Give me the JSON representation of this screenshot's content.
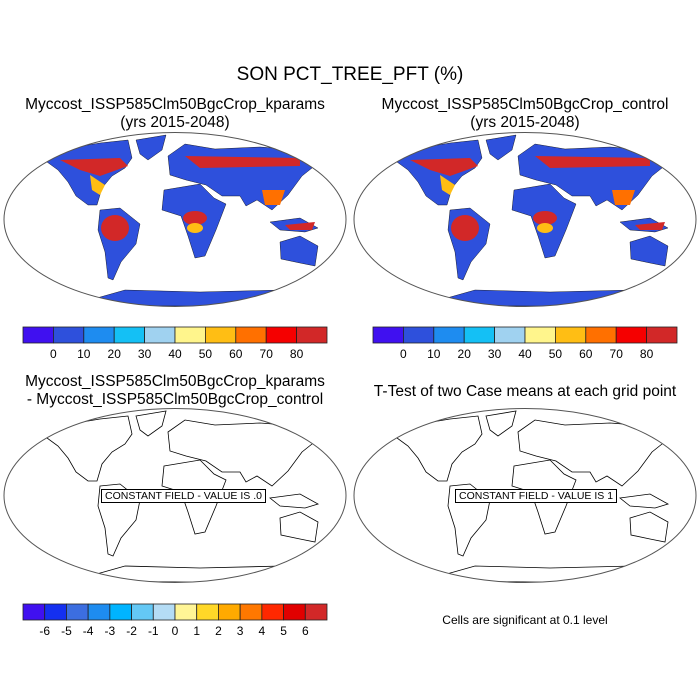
{
  "title": "SON PCT_TREE_PFT (%)",
  "panels": [
    {
      "title_line1": "Myccost_ISSP585Clm50BgcCrop_kparams",
      "title_line2": "(yrs 2015-2048)"
    },
    {
      "title_line1": "Myccost_ISSP585Clm50BgcCrop_control",
      "title_line2": "(yrs 2015-2048)"
    },
    {
      "title_line1": "Myccost_ISSP585Clm50BgcCrop_kparams",
      "title_line2": "- Myccost_ISSP585Clm50BgcCrop_control",
      "field_label": "CONSTANT FIELD - VALUE IS .0"
    },
    {
      "title_line1": "T-Test of two Case means at each grid point",
      "field_label": "CONSTANT FIELD - VALUE IS 1",
      "note": "Cells are significant at 0.1 level"
    }
  ],
  "chart_data": [
    {
      "type": "heatmap",
      "projection": "robinson",
      "variable": "PCT_TREE_PFT",
      "units": "%",
      "colorbar": {
        "labels": [
          "0",
          "10",
          "20",
          "30",
          "40",
          "50",
          "60",
          "70",
          "80"
        ],
        "colors": [
          "#4010f0",
          "#2e50dc",
          "#1e8cf0",
          "#14c0f5",
          "#a0d2f0",
          "#fff58c",
          "#ffbe14",
          "#ff7000",
          "#f50000",
          "#d22828"
        ]
      }
    },
    {
      "type": "heatmap",
      "projection": "robinson",
      "variable": "PCT_TREE_PFT",
      "units": "%",
      "colorbar": {
        "labels": [
          "0",
          "10",
          "20",
          "30",
          "40",
          "50",
          "60",
          "70",
          "80"
        ],
        "colors": [
          "#4010f0",
          "#2e50dc",
          "#1e8cf0",
          "#14c0f5",
          "#a0d2f0",
          "#fff58c",
          "#ffbe14",
          "#ff7000",
          "#f50000",
          "#d22828"
        ]
      }
    },
    {
      "type": "heatmap",
      "projection": "robinson",
      "constant_value": 0,
      "colorbar": {
        "labels": [
          "-6",
          "-5",
          "-4",
          "-3",
          "-2",
          "-1",
          "0",
          "1",
          "2",
          "3",
          "4",
          "5",
          "6"
        ],
        "colors": [
          "#4010f0",
          "#1430f0",
          "#3c6ee0",
          "#1e8cf0",
          "#00b4ff",
          "#64c8f5",
          "#b4dcf5",
          "#fff596",
          "#ffd828",
          "#ffaa00",
          "#ff7800",
          "#ff2800",
          "#e10000",
          "#d22828"
        ]
      }
    },
    {
      "type": "heatmap",
      "projection": "robinson",
      "constant_value": 1
    }
  ]
}
